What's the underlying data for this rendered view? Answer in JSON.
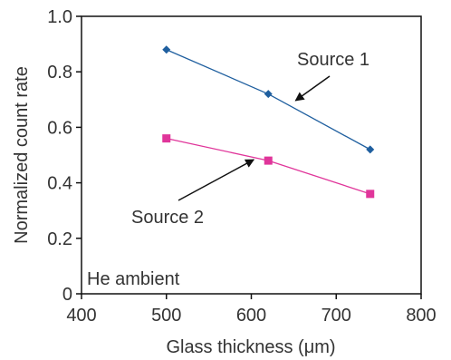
{
  "chart_data": {
    "type": "line",
    "xlabel": "Glass thickness (μm)",
    "ylabel": "Normalized count rate",
    "xlim": [
      400,
      800
    ],
    "ylim": [
      0,
      1.0
    ],
    "xticks": [
      "400",
      "500",
      "600",
      "700",
      "800"
    ],
    "yticks": [
      "0",
      "0.2",
      "0.4",
      "0.6",
      "0.8",
      "1.0"
    ],
    "grid": false,
    "legend": "none",
    "series": [
      {
        "name": "Source 1",
        "color": "#1f5f9f",
        "marker": "diamond",
        "x": [
          500,
          620,
          740
        ],
        "y": [
          0.88,
          0.72,
          0.52
        ]
      },
      {
        "name": "Source 2",
        "color": "#e0359a",
        "marker": "square",
        "x": [
          500,
          620,
          740
        ],
        "y": [
          0.56,
          0.48,
          0.36
        ]
      }
    ],
    "annotations": [
      {
        "text": "He ambient"
      },
      {
        "text": "Source 1",
        "arrow_to": [
          650,
          0.69
        ]
      },
      {
        "text": "Source 2",
        "arrow_to": [
          605,
          0.49
        ]
      }
    ]
  }
}
